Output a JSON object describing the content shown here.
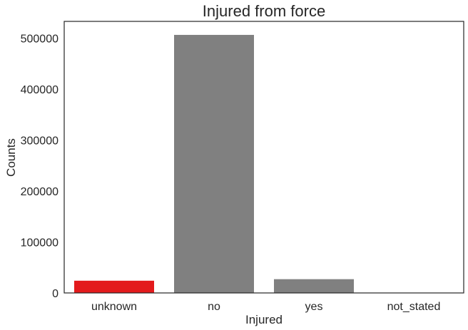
{
  "chart_data": {
    "type": "bar",
    "title": "Injured from force",
    "xlabel": "Injured",
    "ylabel": "Counts",
    "categories": [
      "unknown",
      "no",
      "yes",
      "not_stated"
    ],
    "values": [
      24000,
      506500,
      27000,
      500
    ],
    "colors": [
      "#e31a1c",
      "#808080",
      "#808080",
      "#808080"
    ],
    "ylim": [
      0,
      533000
    ],
    "yticks": [
      0,
      100000,
      200000,
      300000,
      400000,
      500000
    ],
    "ytick_labels": [
      "0",
      "100000",
      "200000",
      "300000",
      "400000",
      "500000"
    ],
    "grid": false,
    "legend": "none"
  }
}
